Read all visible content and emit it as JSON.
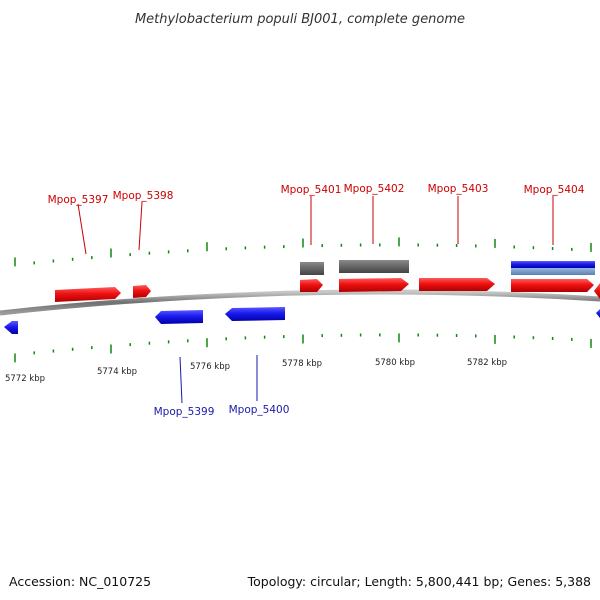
{
  "title": "Methylobacterium populi BJ001, complete genome",
  "footer": {
    "accession": "Accession: NC_010725",
    "summary": "Topology: circular; Length: 5,800,441 bp; Genes: 5,388"
  },
  "colors": {
    "forward_gene": "#ee1111",
    "reverse_gene": "#1a1aee",
    "feature_gray": "#6a6a6a",
    "feature_blue": "#1a1aee",
    "feature_lightblue": "#6b97c9",
    "tick_green": "#118811",
    "backbone": "#808080",
    "label_red": "#cc0000",
    "label_blue": "#1a1aaa"
  },
  "scale_labels": [
    "5772 kbp",
    "5774 kbp",
    "5776 kbp",
    "5778 kbp",
    "5780 kbp",
    "5782 kbp"
  ],
  "gene_labels": [
    {
      "text": "Mpop_5397",
      "strand": "forward"
    },
    {
      "text": "Mpop_5398",
      "strand": "forward"
    },
    {
      "text": "Mpop_5401",
      "strand": "forward"
    },
    {
      "text": "Mpop_5402",
      "strand": "forward"
    },
    {
      "text": "Mpop_5403",
      "strand": "forward"
    },
    {
      "text": "Mpop_5404",
      "strand": "forward"
    },
    {
      "text": "Mpop_5399",
      "strand": "reverse"
    },
    {
      "text": "Mpop_5400",
      "strand": "reverse"
    }
  ]
}
